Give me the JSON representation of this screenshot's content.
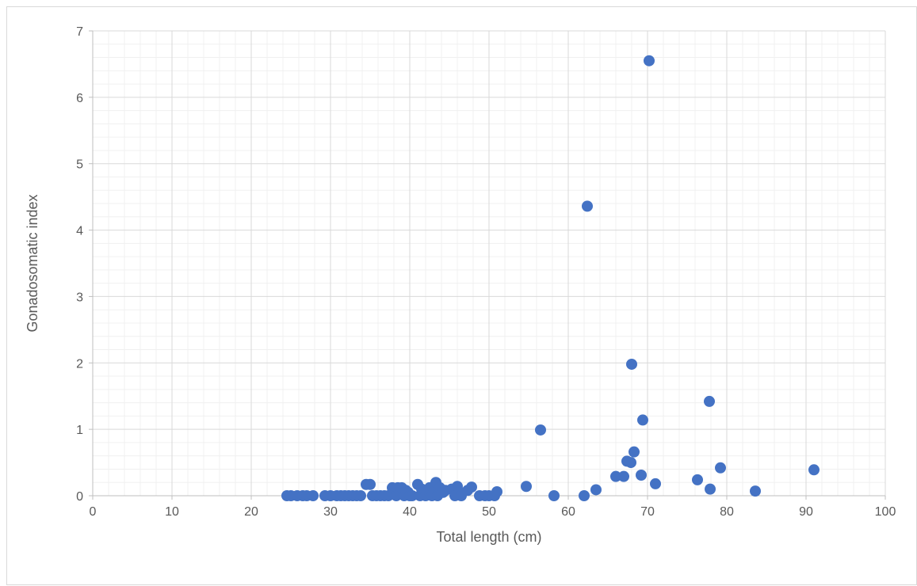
{
  "chart_data": {
    "type": "scatter",
    "title": "",
    "xlabel": "Total length (cm)",
    "ylabel": "Gonadosomatic index",
    "xlim": [
      0,
      100
    ],
    "ylim": [
      0,
      7
    ],
    "xticks": [
      0,
      10,
      20,
      30,
      40,
      50,
      60,
      70,
      80,
      90,
      100
    ],
    "yticks": [
      0,
      1,
      2,
      3,
      4,
      5,
      6,
      7
    ],
    "x_tick_labels": [
      "0",
      "10",
      "20",
      "30",
      "40",
      "50",
      "60",
      "70",
      "80",
      "90",
      "100"
    ],
    "y_tick_labels": [
      "0",
      "1",
      "2",
      "3",
      "4",
      "5",
      "6",
      "7"
    ],
    "grid": true,
    "legend": "none",
    "marker_color": "#4472C4",
    "series": [
      {
        "points": [
          [
            24.5,
            0.0
          ],
          [
            25.0,
            0.0
          ],
          [
            25.8,
            0.0
          ],
          [
            26.5,
            0.0
          ],
          [
            27.0,
            0.0
          ],
          [
            27.8,
            0.0
          ],
          [
            29.3,
            0.0
          ],
          [
            30.0,
            0.0
          ],
          [
            30.8,
            0.0
          ],
          [
            31.3,
            0.0
          ],
          [
            31.8,
            0.0
          ],
          [
            32.3,
            0.0
          ],
          [
            32.8,
            0.0
          ],
          [
            33.3,
            0.0
          ],
          [
            33.8,
            0.0
          ],
          [
            34.5,
            0.17
          ],
          [
            35.0,
            0.17
          ],
          [
            35.3,
            0.0
          ],
          [
            35.8,
            0.0
          ],
          [
            36.3,
            0.0
          ],
          [
            36.8,
            0.0
          ],
          [
            37.3,
            0.0
          ],
          [
            37.8,
            0.12
          ],
          [
            38.0,
            0.03
          ],
          [
            38.3,
            0.0
          ],
          [
            38.5,
            0.12
          ],
          [
            38.8,
            0.05
          ],
          [
            39.0,
            0.12
          ],
          [
            39.3,
            0.0
          ],
          [
            39.5,
            0.08
          ],
          [
            39.8,
            0.05
          ],
          [
            40.0,
            0.0
          ],
          [
            40.3,
            0.0
          ],
          [
            41.0,
            0.17
          ],
          [
            41.3,
            0.0
          ],
          [
            41.5,
            0.1
          ],
          [
            41.8,
            0.05
          ],
          [
            42.0,
            0.0
          ],
          [
            42.3,
            0.08
          ],
          [
            42.5,
            0.12
          ],
          [
            42.8,
            0.0
          ],
          [
            43.0,
            0.05
          ],
          [
            43.3,
            0.2
          ],
          [
            43.5,
            0.0
          ],
          [
            43.8,
            0.12
          ],
          [
            44.2,
            0.05
          ],
          [
            44.5,
            0.08
          ],
          [
            45.3,
            0.1
          ],
          [
            45.7,
            0.0
          ],
          [
            46.0,
            0.14
          ],
          [
            46.3,
            0.05
          ],
          [
            46.5,
            0.0
          ],
          [
            47.3,
            0.08
          ],
          [
            47.8,
            0.13
          ],
          [
            48.8,
            0.0
          ],
          [
            49.5,
            0.0
          ],
          [
            50.0,
            0.0
          ],
          [
            50.7,
            0.0
          ],
          [
            51.0,
            0.06
          ],
          [
            54.7,
            0.14
          ],
          [
            56.5,
            0.99
          ],
          [
            58.2,
            0.0
          ],
          [
            62.0,
            0.0
          ],
          [
            62.4,
            4.36
          ],
          [
            63.5,
            0.09
          ],
          [
            66.0,
            0.29
          ],
          [
            67.0,
            0.29
          ],
          [
            67.4,
            0.52
          ],
          [
            67.9,
            0.5
          ],
          [
            68.0,
            1.98
          ],
          [
            68.3,
            0.66
          ],
          [
            69.2,
            0.31
          ],
          [
            69.4,
            1.14
          ],
          [
            70.2,
            6.55
          ],
          [
            71.0,
            0.18
          ],
          [
            76.3,
            0.24
          ],
          [
            77.8,
            1.42
          ],
          [
            77.9,
            0.1
          ],
          [
            79.2,
            0.42
          ],
          [
            83.6,
            0.07
          ],
          [
            91.0,
            0.39
          ]
        ]
      }
    ]
  }
}
